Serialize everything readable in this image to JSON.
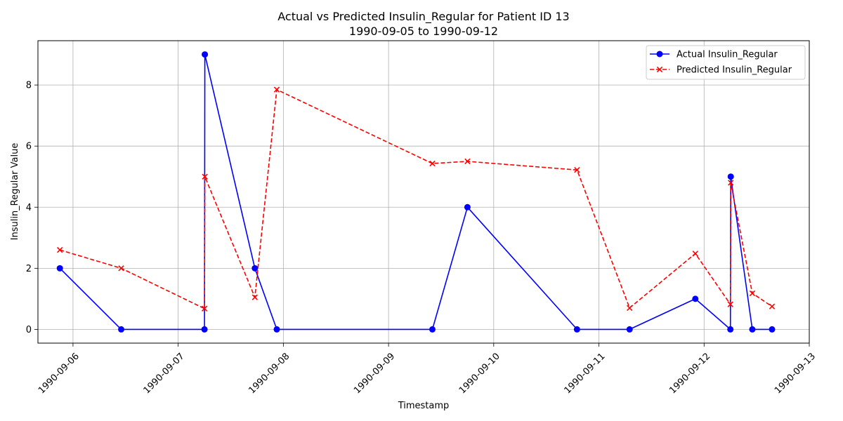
{
  "chart_data": {
    "type": "line",
    "title": "Actual vs Predicted Insulin_Regular for Patient ID 13",
    "subtitle": "1990-09-05 to 1990-09-12",
    "xlabel": "Timestamp",
    "ylabel": "Insulin_Regular Value",
    "xlim": [
      "1990-09-05 16:00",
      "1990-09-13 00:00"
    ],
    "ylim": [
      -0.45,
      9.45
    ],
    "x_ticks": [
      "1990-09-06",
      "1990-09-07",
      "1990-09-08",
      "1990-09-09",
      "1990-09-10",
      "1990-09-11",
      "1990-09-12",
      "1990-09-13"
    ],
    "y_ticks": [
      0,
      2,
      4,
      6,
      8
    ],
    "grid": true,
    "legend_position": "top-right",
    "series": [
      {
        "name": "Actual Insulin_Regular",
        "color": "#0000ff",
        "line_style": "solid",
        "marker": "circle",
        "points": [
          [
            "1990-09-05 21:00",
            2
          ],
          [
            "1990-09-06 11:00",
            0
          ],
          [
            "1990-09-07 06:00",
            0
          ],
          [
            "1990-09-07 06:05",
            9
          ],
          [
            "1990-09-07 17:30",
            2
          ],
          [
            "1990-09-07 22:30",
            0
          ],
          [
            "1990-09-09 10:00",
            0
          ],
          [
            "1990-09-09 18:00",
            4
          ],
          [
            "1990-09-10 19:00",
            0
          ],
          [
            "1990-09-11 07:00",
            0
          ],
          [
            "1990-09-11 22:00",
            1
          ],
          [
            "1990-09-12 06:00",
            0
          ],
          [
            "1990-09-12 06:05",
            5
          ],
          [
            "1990-09-12 11:00",
            0
          ],
          [
            "1990-09-12 15:30",
            0
          ]
        ]
      },
      {
        "name": "Predicted Insulin_Regular",
        "color": "#ff0000",
        "line_style": "dashed",
        "marker": "x",
        "points": [
          [
            "1990-09-05 21:00",
            2.6
          ],
          [
            "1990-09-06 11:00",
            2.0
          ],
          [
            "1990-09-07 06:00",
            0.68
          ],
          [
            "1990-09-07 06:05",
            5.0
          ],
          [
            "1990-09-07 17:30",
            1.05
          ],
          [
            "1990-09-07 22:30",
            7.85
          ],
          [
            "1990-09-09 10:00",
            5.43
          ],
          [
            "1990-09-09 18:00",
            5.5
          ],
          [
            "1990-09-10 19:00",
            5.22
          ],
          [
            "1990-09-11 07:00",
            0.7
          ],
          [
            "1990-09-11 22:00",
            2.48
          ],
          [
            "1990-09-12 06:00",
            0.82
          ],
          [
            "1990-09-12 06:05",
            4.8
          ],
          [
            "1990-09-12 11:00",
            1.18
          ],
          [
            "1990-09-12 15:30",
            0.75
          ]
        ]
      }
    ]
  }
}
